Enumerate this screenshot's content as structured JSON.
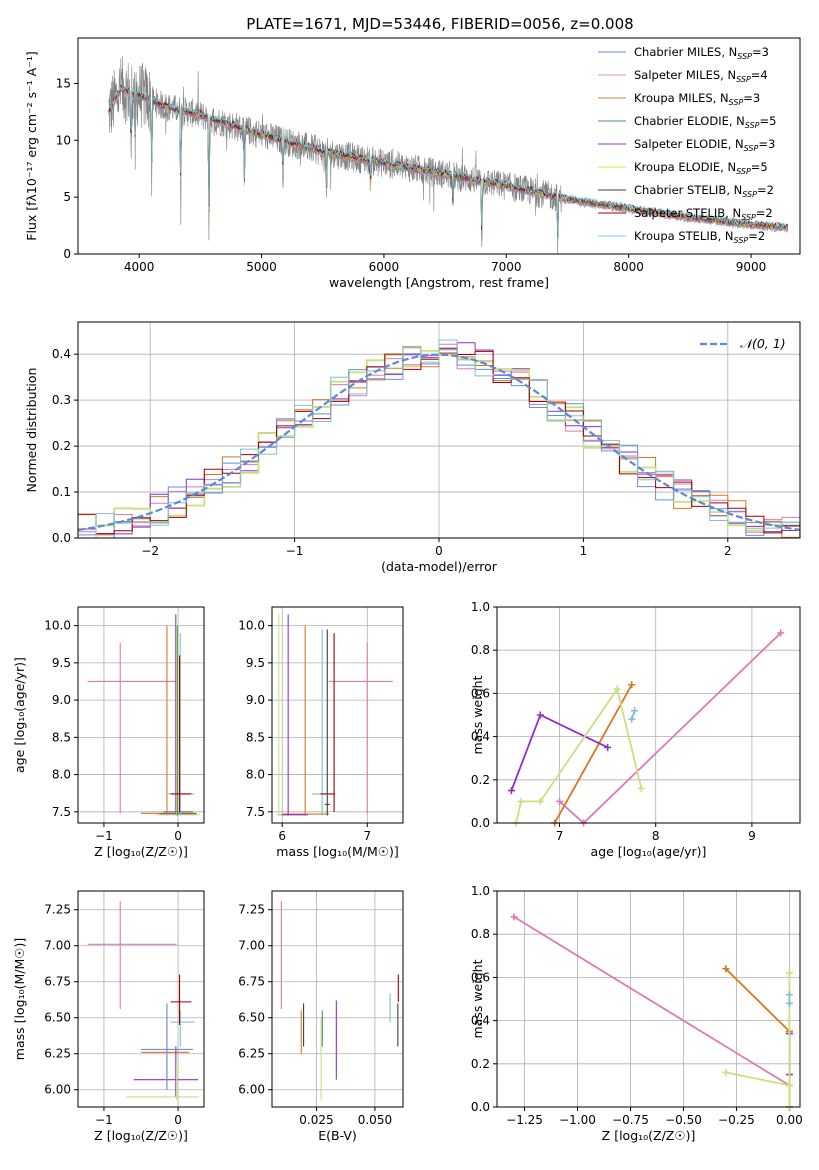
{
  "figure_title": "PLATE=1671, MJD=53446, FIBERID=0056, z=0.008",
  "colors": {
    "chabrier_miles": "#6a8fd6",
    "salpeter_miles": "#e88fc0",
    "kroupa_miles": "#c8873a",
    "chabrier_elodie": "#4f8f5f",
    "salpeter_elodie": "#9b30c8",
    "kroupa_elodie": "#e0e040",
    "chabrier_stelib": "#404040",
    "salpeter_stelib": "#a00000",
    "kroupa_stelib": "#70d8e8",
    "data": "#808080",
    "gauss": "#5b8bd6",
    "pink": "#e078b8",
    "orange": "#d87820",
    "purple": "#9030c0",
    "lime": "#c8e080",
    "teal": "#80c0d0"
  },
  "chart_data": [
    {
      "id": "spectrum",
      "type": "line",
      "title": "PLATE=1671, MJD=53446, FIBERID=0056, z=0.008",
      "xlabel": "wavelength [Angstrom, rest frame]",
      "ylabel": "Flux [fλ10⁻¹⁷ erg cm⁻² s⁻¹ A⁻¹]",
      "xlim": [
        3500,
        9400
      ],
      "ylim": [
        0,
        19
      ],
      "xticks": [
        "4000",
        "5000",
        "6000",
        "7000",
        "8000",
        "9000"
      ],
      "xtick_values": [
        4000,
        5000,
        6000,
        7000,
        8000,
        9000
      ],
      "yticks": [
        "0",
        "5",
        "10",
        "15"
      ],
      "ytick_values": [
        0,
        5,
        10,
        15
      ],
      "grid": false,
      "legend_position": "top-right",
      "series": [
        {
          "name": "Chabrier MILES, NSSP=3",
          "legend_main": "Chabrier MILES, N",
          "legend_sub": "SSP",
          "legend_tail": "=3",
          "color": "#6a8fd6"
        },
        {
          "name": "Salpeter MILES, NSSP=4",
          "legend_main": "Salpeter MILES, N",
          "legend_sub": "SSP",
          "legend_tail": "=4",
          "color": "#e88fc0"
        },
        {
          "name": "Kroupa MILES, NSSP=3",
          "legend_main": "Kroupa MILES, N",
          "legend_sub": "SSP",
          "legend_tail": "=3",
          "color": "#c8873a"
        },
        {
          "name": "Chabrier ELODIE, NSSP=5",
          "legend_main": "Chabrier ELODIE, N",
          "legend_sub": "SSP",
          "legend_tail": "=5",
          "color": "#4f8f5f"
        },
        {
          "name": "Salpeter ELODIE, NSSP=3",
          "legend_main": "Salpeter ELODIE, N",
          "legend_sub": "SSP",
          "legend_tail": "=3",
          "color": "#9b30c8"
        },
        {
          "name": "Kroupa ELODIE, NSSP=5",
          "legend_main": "Kroupa ELODIE, N",
          "legend_sub": "SSP",
          "legend_tail": "=5",
          "color": "#e0e040"
        },
        {
          "name": "Chabrier STELIB, NSSP=2",
          "legend_main": "Chabrier STELIB, N",
          "legend_sub": "SSP",
          "legend_tail": "=2",
          "color": "#404040"
        },
        {
          "name": "Salpeter STELIB, NSSP=2",
          "legend_main": "Salpeter STELIB, N",
          "legend_sub": "SSP",
          "legend_tail": "=2",
          "color": "#a00000"
        },
        {
          "name": "Kroupa STELIB, NSSP=2",
          "legend_main": "Kroupa STELIB, N",
          "legend_sub": "SSP",
          "legend_tail": "=2",
          "color": "#70d8e8"
        }
      ],
      "continuum": [
        [
          3750,
          12.5
        ],
        [
          3850,
          14.5
        ],
        [
          4000,
          14.0
        ],
        [
          4200,
          13.0
        ],
        [
          4500,
          12.2
        ],
        [
          5000,
          10.5
        ],
        [
          5500,
          9.0
        ],
        [
          6000,
          8.0
        ],
        [
          6500,
          7.0
        ],
        [
          7000,
          6.0
        ],
        [
          7500,
          4.8
        ],
        [
          8000,
          4.0
        ],
        [
          8500,
          3.2
        ],
        [
          9000,
          2.6
        ],
        [
          9300,
          2.3
        ]
      ],
      "data_range": [
        3750,
        7450
      ],
      "model_range": [
        3750,
        9300
      ],
      "absorption_lines": [
        [
          3933,
          0.5
        ],
        [
          3968,
          0.6
        ],
        [
          4102,
          0.4
        ],
        [
          4340,
          0.3
        ],
        [
          4570,
          0.0
        ],
        [
          4861,
          0.5
        ],
        [
          5175,
          0.6
        ],
        [
          5530,
          0.5
        ],
        [
          5890,
          0.7
        ],
        [
          6563,
          0.6
        ],
        [
          6800,
          0.0
        ],
        [
          7420,
          0.0
        ]
      ]
    },
    {
      "id": "residual_hist",
      "type": "line",
      "xlabel": "(data-model)/error",
      "ylabel": "Normed distribution",
      "xlim": [
        -2.5,
        2.5
      ],
      "ylim": [
        0,
        0.47
      ],
      "xticks": [
        "−2",
        "−1",
        "0",
        "1",
        "2"
      ],
      "xtick_values": [
        -2,
        -1,
        0,
        1,
        2
      ],
      "yticks": [
        "0.0",
        "0.1",
        "0.2",
        "0.3",
        "0.4"
      ],
      "ytick_values": [
        0,
        0.1,
        0.2,
        0.3,
        0.4
      ],
      "grid": true,
      "legend_label": "𝒩(0, 1)",
      "legend_position": "top-right",
      "bin_width": 0.125,
      "bin_start": -2.5,
      "gaussian": {
        "mu": 0,
        "sigma": 1
      }
    },
    {
      "id": "age_vs_z",
      "type": "scatter",
      "xlabel": "Z [log₁₀(Z/Z☉)]",
      "ylabel": "age  [log₁₀(age/yr)]",
      "xlim": [
        -1.35,
        0.35
      ],
      "ylim": [
        7.35,
        10.25
      ],
      "xticks": [
        "−1",
        "0"
      ],
      "xtick_values": [
        -1,
        0
      ],
      "yticks": [
        "7.5",
        "8.0",
        "8.5",
        "9.0",
        "9.5",
        "10.0"
      ],
      "ytick_values": [
        7.5,
        8.0,
        8.5,
        9.0,
        9.5,
        10.0
      ],
      "grid": true,
      "errorbars": [
        {
          "x": -0.78,
          "xlo": -1.22,
          "xhi": -0.02,
          "y": 9.25,
          "ylo": 7.48,
          "yhi": 9.77,
          "color": "#e078b8"
        },
        {
          "x": -0.15,
          "xlo": -0.5,
          "xhi": 0.25,
          "y": 7.48,
          "ylo": 7.45,
          "yhi": 10.0,
          "color": "#d87820"
        },
        {
          "x": -0.03,
          "xlo": -0.25,
          "xhi": 0.25,
          "y": 7.47,
          "ylo": 7.45,
          "yhi": 10.15,
          "color": "#9030c0"
        },
        {
          "x": -0.02,
          "xlo": -0.3,
          "xhi": 0.3,
          "y": 7.46,
          "ylo": 7.44,
          "yhi": 10.1,
          "color": "#c8e080"
        },
        {
          "x": 0.03,
          "xlo": -0.15,
          "xhi": 0.22,
          "y": 7.74,
          "ylo": 7.45,
          "yhi": 9.9,
          "color": "#80c0d0"
        },
        {
          "x": -0.01,
          "xlo": -0.2,
          "xhi": 0.2,
          "y": 7.5,
          "ylo": 7.45,
          "yhi": 10.0,
          "color": "#4f8f5f"
        },
        {
          "x": 0.02,
          "xlo": -0.1,
          "xhi": 0.18,
          "y": 7.74,
          "ylo": 7.5,
          "yhi": 9.6,
          "color": "#a00000"
        }
      ]
    },
    {
      "id": "age_vs_mass",
      "type": "scatter",
      "xlabel": "mass [log₁₀(M/M☉)]",
      "xlim": [
        5.88,
        7.42
      ],
      "ylim": [
        7.35,
        10.25
      ],
      "xticks": [
        "6",
        "7"
      ],
      "xtick_values": [
        6,
        7
      ],
      "yticks": [
        "7.5",
        "8.0",
        "8.5",
        "9.0",
        "9.5",
        "10.0"
      ],
      "ytick_values": [
        7.5,
        8.0,
        8.5,
        9.0,
        9.5,
        10.0
      ],
      "grid": true,
      "errorbars": [
        {
          "x": 7.0,
          "xlo": 6.55,
          "xhi": 7.3,
          "y": 9.25,
          "ylo": 7.48,
          "yhi": 9.77,
          "color": "#e078b8"
        },
        {
          "x": 6.27,
          "xlo": 6.0,
          "xhi": 6.55,
          "y": 7.47,
          "ylo": 7.45,
          "yhi": 10.0,
          "color": "#d87820"
        },
        {
          "x": 6.07,
          "xlo": 5.95,
          "xhi": 6.3,
          "y": 7.46,
          "ylo": 7.45,
          "yhi": 10.15,
          "color": "#9030c0"
        },
        {
          "x": 5.96,
          "xlo": 5.93,
          "xhi": 6.0,
          "y": 7.46,
          "ylo": 7.45,
          "yhi": 10.15,
          "color": "#c8e080"
        },
        {
          "x": 6.47,
          "xlo": 6.35,
          "xhi": 6.55,
          "y": 7.74,
          "ylo": 7.45,
          "yhi": 9.95,
          "color": "#80c0d0"
        },
        {
          "x": 6.61,
          "xlo": 6.45,
          "xhi": 6.62,
          "y": 7.74,
          "ylo": 7.5,
          "yhi": 9.9,
          "color": "#a00000"
        },
        {
          "x": 6.53,
          "xlo": 6.5,
          "xhi": 6.56,
          "y": 7.6,
          "ylo": 7.45,
          "yhi": 9.95,
          "color": "#404040"
        }
      ]
    },
    {
      "id": "weight_vs_age",
      "type": "line",
      "xlabel": "age  [log₁₀(age/yr)]",
      "ylabel": "mass weight",
      "xlim": [
        6.35,
        9.5
      ],
      "ylim": [
        0,
        1.0
      ],
      "xticks": [
        "7",
        "8",
        "9"
      ],
      "xtick_values": [
        7,
        8,
        9
      ],
      "yticks": [
        "0.0",
        "0.2",
        "0.4",
        "0.6",
        "0.8",
        "1.0"
      ],
      "ytick_values": [
        0,
        0.2,
        0.4,
        0.6,
        0.8,
        1.0
      ],
      "grid": true,
      "series": [
        {
          "color": "#e078b8",
          "points": [
            [
              7.0,
              0.1
            ],
            [
              7.25,
              0.0
            ],
            [
              9.3,
              0.88
            ]
          ]
        },
        {
          "color": "#d87820",
          "points": [
            [
              6.95,
              0.0
            ],
            [
              7.75,
              0.64
            ]
          ]
        },
        {
          "color": "#9030c0",
          "points": [
            [
              6.5,
              0.15
            ],
            [
              6.8,
              0.5
            ],
            [
              7.5,
              0.35
            ]
          ]
        },
        {
          "color": "#c8e080",
          "points": [
            [
              6.55,
              0.0
            ],
            [
              6.6,
              0.1
            ],
            [
              6.8,
              0.1
            ],
            [
              7.6,
              0.62
            ],
            [
              7.85,
              0.16
            ]
          ]
        },
        {
          "color": "#80c0d0",
          "points": [
            [
              7.75,
              0.48
            ],
            [
              7.78,
              0.52
            ]
          ]
        }
      ]
    },
    {
      "id": "mass_vs_z",
      "type": "scatter",
      "xlabel": "Z [log₁₀(Z/Z☉)]",
      "ylabel": "mass [log₁₀(M/M☉)]",
      "xlim": [
        -1.35,
        0.35
      ],
      "ylim": [
        5.88,
        7.38
      ],
      "xticks": [
        "−1",
        "0"
      ],
      "xtick_values": [
        -1,
        0
      ],
      "yticks": [
        "6.00",
        "6.25",
        "6.50",
        "6.75",
        "7.00",
        "7.25"
      ],
      "ytick_values": [
        6.0,
        6.25,
        6.5,
        6.75,
        7.0,
        7.25
      ],
      "grid": true,
      "errorbars": [
        {
          "x": -0.78,
          "xlo": -1.22,
          "xhi": -0.02,
          "y": 7.01,
          "ylo": 6.56,
          "yhi": 7.31,
          "color": "#e078b8"
        },
        {
          "x": -0.15,
          "xlo": -0.5,
          "xhi": 0.15,
          "y": 6.26,
          "ylo": 6.0,
          "yhi": 6.55,
          "color": "#d87820"
        },
        {
          "x": -0.03,
          "xlo": -0.6,
          "xhi": 0.27,
          "y": 6.07,
          "ylo": 5.95,
          "yhi": 6.3,
          "color": "#9030c0"
        },
        {
          "x": -0.02,
          "xlo": -0.7,
          "xhi": 0.28,
          "y": 5.95,
          "ylo": 5.93,
          "yhi": 6.2,
          "color": "#c8e080"
        },
        {
          "x": 0.03,
          "xlo": -0.1,
          "xhi": 0.22,
          "y": 6.47,
          "ylo": 6.3,
          "yhi": 6.55,
          "color": "#80c0d0"
        },
        {
          "x": 0.02,
          "xlo": -0.1,
          "xhi": 0.18,
          "y": 6.61,
          "ylo": 6.45,
          "yhi": 6.8,
          "color": "#a00000"
        },
        {
          "x": -0.15,
          "xlo": -0.5,
          "xhi": 0.2,
          "y": 6.28,
          "ylo": 6.0,
          "yhi": 6.6,
          "color": "#6a8fd6"
        }
      ]
    },
    {
      "id": "mass_vs_ebv",
      "type": "scatter",
      "xlabel": "E(B-V)",
      "xlim": [
        0.006,
        0.062
      ],
      "ylim": [
        5.88,
        7.38
      ],
      "xticks": [
        "0.025",
        "0.050"
      ],
      "xtick_values": [
        0.025,
        0.05
      ],
      "yticks": [
        "6.00",
        "6.25",
        "6.50",
        "6.75",
        "7.00",
        "7.25"
      ],
      "ytick_values": [
        6.0,
        6.25,
        6.5,
        6.75,
        7.0,
        7.25
      ],
      "grid": true,
      "vbars": [
        {
          "x": 0.01,
          "ylo": 6.56,
          "yhi": 7.31,
          "color": "#e078b8"
        },
        {
          "x": 0.0185,
          "ylo": 6.25,
          "yhi": 6.55,
          "color": "#d87820"
        },
        {
          "x": 0.0195,
          "ylo": 6.3,
          "yhi": 6.6,
          "color": "#404040"
        },
        {
          "x": 0.027,
          "ylo": 5.93,
          "yhi": 6.5,
          "color": "#c8e080"
        },
        {
          "x": 0.0275,
          "ylo": 6.3,
          "yhi": 6.55,
          "color": "#4f8f5f"
        },
        {
          "x": 0.0335,
          "ylo": 6.07,
          "yhi": 6.62,
          "color": "#9030c0"
        },
        {
          "x": 0.0565,
          "ylo": 6.47,
          "yhi": 6.67,
          "color": "#80c0d0"
        },
        {
          "x": 0.0598,
          "ylo": 6.3,
          "yhi": 6.6,
          "color": "#404040"
        },
        {
          "x": 0.06,
          "ylo": 6.61,
          "yhi": 6.8,
          "color": "#a00000"
        }
      ]
    },
    {
      "id": "weight_vs_z",
      "type": "line",
      "xlabel": "Z [log₁₀(Z/Z☉)]",
      "ylabel": "mass weight",
      "xlim": [
        -1.38,
        0.05
      ],
      "ylim": [
        0,
        1.0
      ],
      "xticks": [
        "−1.25",
        "−1.00",
        "−0.75",
        "−0.50",
        "−0.25",
        "0.00"
      ],
      "xtick_values": [
        -1.25,
        -1.0,
        -0.75,
        -0.5,
        -0.25,
        0.0
      ],
      "yticks": [
        "0.0",
        "0.2",
        "0.4",
        "0.6",
        "0.8",
        "1.0"
      ],
      "ytick_values": [
        0,
        0.2,
        0.4,
        0.6,
        0.8,
        1.0
      ],
      "grid": true,
      "series": [
        {
          "color": "#e078b8",
          "points": [
            [
              -1.3,
              0.88
            ],
            [
              0.0,
              0.1
            ],
            [
              0.0,
              0.0
            ]
          ]
        },
        {
          "color": "#d87820",
          "points": [
            [
              -0.3,
              0.64
            ],
            [
              0.0,
              0.35
            ],
            [
              0.0,
              0.0
            ]
          ]
        },
        {
          "color": "#9030c0",
          "points": [
            [
              0.0,
              0.34
            ],
            [
              0.0,
              0.15
            ]
          ]
        },
        {
          "color": "#c8e080",
          "points": [
            [
              -0.3,
              0.16
            ],
            [
              0.0,
              0.1
            ],
            [
              0.0,
              0.62
            ],
            [
              0.0,
              0.0
            ]
          ]
        },
        {
          "color": "#80c0d0",
          "points": [
            [
              0.0,
              0.48
            ],
            [
              0.0,
              0.52
            ]
          ]
        }
      ]
    }
  ]
}
